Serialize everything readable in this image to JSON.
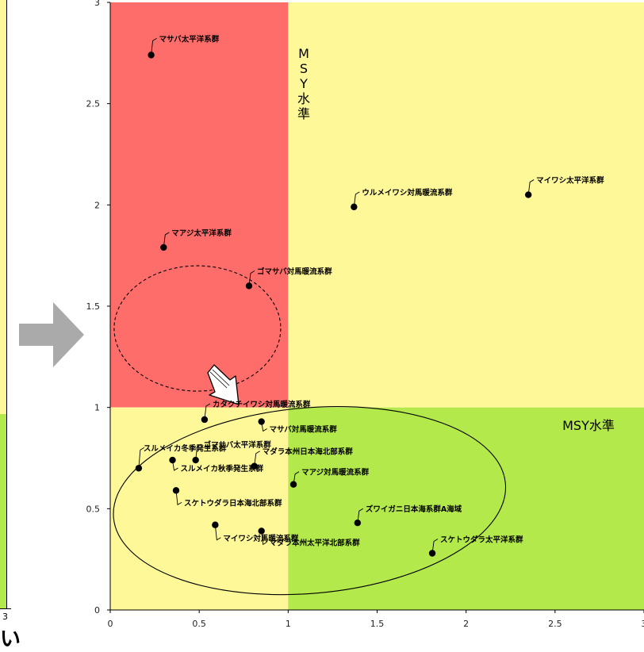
{
  "left_panel": {
    "tick": "3",
    "fragment": "い"
  },
  "chart_data": {
    "type": "scatter",
    "xlim": [
      0,
      3
    ],
    "ylim": [
      0,
      3
    ],
    "x_ticks": [
      "0",
      "0.5",
      "1",
      "1.5",
      "2",
      "2.5",
      "3"
    ],
    "y_ticks": [
      "0",
      "0.5",
      "1",
      "1.5",
      "2",
      "2.5",
      "3"
    ],
    "zones": [
      {
        "name": "top-left",
        "color": "#ff6d6a"
      },
      {
        "name": "top-right",
        "color": "#fff898"
      },
      {
        "name": "bottom-left",
        "color": "#fff898"
      },
      {
        "name": "bottom-right",
        "color": "#b3e94a"
      }
    ],
    "vertical_label": [
      "M",
      "S",
      "Y",
      "水",
      "準"
    ],
    "horizontal_label": "MSY水準",
    "points": [
      {
        "label": "マサバ太平洋系群",
        "x": 0.23,
        "y": 2.74
      },
      {
        "label": "マアジ太平洋系群",
        "x": 0.3,
        "y": 1.79
      },
      {
        "label": "ゴマサバ対馬暖流系群",
        "x": 0.78,
        "y": 1.6
      },
      {
        "label": "ウルメイワシ対馬暖流系群",
        "x": 1.37,
        "y": 1.99
      },
      {
        "label": "マイワシ太平洋系群",
        "x": 2.35,
        "y": 2.05
      },
      {
        "label": "カタクチイワシ対馬暖流系群",
        "x": 0.53,
        "y": 0.94
      },
      {
        "label": "マサバ対馬暖流系群",
        "x": 0.85,
        "y": 0.93
      },
      {
        "label": "スルメイカ冬季発生系群",
        "x": 0.16,
        "y": 0.7
      },
      {
        "label": "ゴマサバ太平洋系群",
        "x": 0.48,
        "y": 0.74
      },
      {
        "label": "スルメイカ秋季発生系群",
        "x": 0.35,
        "y": 0.74
      },
      {
        "label": "マダラ本州日本海北部系群",
        "x": 0.81,
        "y": 0.71
      },
      {
        "label": "マアジ対馬暖流系群",
        "x": 1.03,
        "y": 0.62
      },
      {
        "label": "スケトウダラ日本海北部系群",
        "x": 0.37,
        "y": 0.59
      },
      {
        "label": "ズワイガニ日本海系群A海域",
        "x": 1.39,
        "y": 0.43
      },
      {
        "label": "マイワシ対馬暖流系群",
        "x": 0.59,
        "y": 0.42
      },
      {
        "label": "マダラ本州太平洋北部系群",
        "x": 0.85,
        "y": 0.39
      },
      {
        "label": "スケトウダラ太平洋系群",
        "x": 1.81,
        "y": 0.28
      }
    ]
  }
}
